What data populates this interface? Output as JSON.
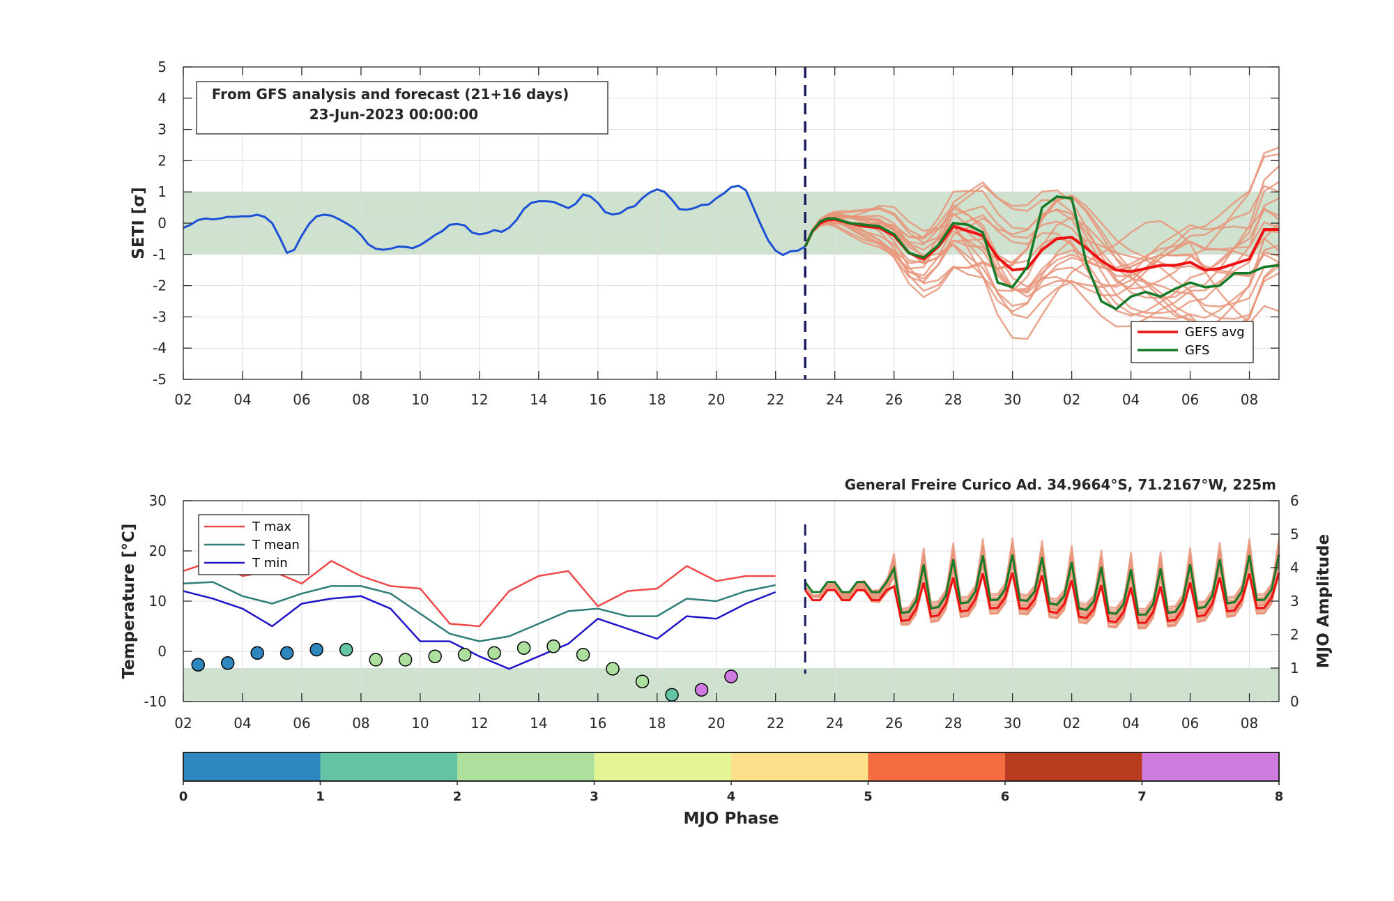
{
  "colors": {
    "analysis": "#1a4fd6",
    "ensemble": "#e8957a",
    "gefs_avg": "#ee1111",
    "gfs": "#157a28",
    "band": "#cfe2cf",
    "divider": "#1a1a5e",
    "tmax": "#ef4848",
    "tmean": "#2e7d78",
    "tmin": "#2014c8"
  },
  "chart_data": [
    {
      "type": "line",
      "id": "seti",
      "ylabel": "SETI [σ]",
      "ylim": [
        -5,
        5
      ],
      "yticks": [
        "5",
        "4",
        "3",
        "2",
        "1",
        "0",
        "-1",
        "-2",
        "-3",
        "-4",
        "-5"
      ],
      "xlim": [
        0,
        37
      ],
      "xtick_labels": [
        "02",
        "04",
        "06",
        "08",
        "10",
        "12",
        "14",
        "16",
        "18",
        "20",
        "22",
        "24",
        "26",
        "28",
        "30",
        "02",
        "04",
        "06",
        "08"
      ],
      "shaded_band": [
        -1,
        1
      ],
      "forecast_start": 21,
      "info_box": {
        "line1": "From GFS analysis and forecast (21+16 days)",
        "line2": "23-Jun-2023 00:00:00"
      },
      "legend": {
        "placement": "bottom-right",
        "entries": [
          "GEFS avg",
          "GFS"
        ]
      },
      "analysis": {
        "x": [
          0,
          0.25,
          0.5,
          0.75,
          1,
          1.25,
          1.5,
          1.75,
          2,
          2.25,
          2.5,
          2.75,
          3,
          3.25,
          3.5,
          3.75,
          4,
          4.25,
          4.5,
          4.75,
          5,
          5.25,
          5.5,
          5.75,
          6,
          6.25,
          6.5,
          6.75,
          7,
          7.25,
          7.5,
          7.75,
          8,
          8.25,
          8.5,
          8.75,
          9,
          9.25,
          9.5,
          9.75,
          10,
          10.25,
          10.5,
          10.75,
          11,
          11.25,
          11.5,
          11.75,
          12,
          12.25,
          12.5,
          12.75,
          13,
          13.25,
          13.5,
          13.75,
          14,
          14.25,
          14.5,
          14.75,
          15,
          15.25,
          15.5,
          15.75,
          16,
          16.25,
          16.5,
          16.75,
          17,
          17.25,
          17.5,
          17.75,
          18,
          18.25,
          18.5,
          18.75,
          19,
          19.25,
          19.5,
          19.75,
          20,
          20.25,
          20.5,
          20.75,
          21
        ],
        "y": [
          -0.15,
          -0.05,
          0.1,
          0.15,
          0.12,
          0.15,
          0.2,
          0.2,
          0.22,
          0.22,
          0.27,
          0.2,
          0,
          -0.45,
          -0.95,
          -0.85,
          -0.4,
          -0.02,
          0.22,
          0.27,
          0.24,
          0.13,
          0,
          -0.15,
          -0.38,
          -0.68,
          -0.82,
          -0.85,
          -0.82,
          -0.75,
          -0.76,
          -0.8,
          -0.7,
          -0.55,
          -0.38,
          -0.25,
          -0.05,
          -0.03,
          -0.07,
          -0.3,
          -0.36,
          -0.32,
          -0.22,
          -0.28,
          -0.15,
          0.1,
          0.45,
          0.65,
          0.7,
          0.7,
          0.68,
          0.58,
          0.48,
          0.62,
          0.92,
          0.85,
          0.65,
          0.35,
          0.28,
          0.32,
          0.48,
          0.55,
          0.8,
          0.98,
          1.08,
          1,
          0.75,
          0.45,
          0.43,
          0.48,
          0.58,
          0.6,
          0.8,
          0.95,
          1.15,
          1.2,
          1.05,
          0.5,
          -0.05,
          -0.55,
          -0.88,
          -1.02,
          -0.9,
          -0.88,
          -0.75
        ]
      },
      "gefs_avg": {
        "x": [
          21,
          21.25,
          21.5,
          21.75,
          22,
          22.5,
          23,
          23.5,
          24,
          24.5,
          25,
          25.5,
          26,
          26.5,
          27,
          27.5,
          28,
          28.5,
          29,
          29.5,
          30,
          30.5,
          31,
          31.5,
          32,
          32.5,
          33,
          33.5,
          34,
          34.5,
          35,
          35.5,
          36,
          36.5,
          37
        ],
        "y": [
          -0.75,
          -0.25,
          0,
          0.1,
          0.12,
          0,
          -0.1,
          -0.15,
          -0.4,
          -0.95,
          -1.15,
          -0.75,
          -0.1,
          -0.25,
          -0.4,
          -1.1,
          -1.5,
          -1.45,
          -0.85,
          -0.5,
          -0.45,
          -0.8,
          -1.2,
          -1.5,
          -1.55,
          -1.45,
          -1.35,
          -1.35,
          -1.25,
          -1.5,
          -1.45,
          -1.3,
          -1.15,
          -0.2,
          -0.2
        ]
      },
      "gfs": {
        "x": [
          21,
          21.25,
          21.5,
          21.75,
          22,
          22.5,
          23,
          23.5,
          24,
          24.5,
          25,
          25.5,
          26,
          26.5,
          27,
          27.5,
          28,
          28.5,
          29,
          29.5,
          30,
          30.5,
          31,
          31.5,
          32,
          32.5,
          33,
          33.5,
          34,
          34.5,
          35,
          35.5,
          36,
          36.5,
          37
        ],
        "y": [
          -0.75,
          -0.25,
          0.05,
          0.15,
          0.15,
          0,
          -0.05,
          -0.1,
          -0.35,
          -0.95,
          -1.1,
          -0.7,
          0,
          -0.05,
          -0.3,
          -1.9,
          -2.05,
          -1.4,
          0.5,
          0.85,
          0.8,
          -1.3,
          -2.5,
          -2.75,
          -2.35,
          -2.2,
          -2.35,
          -2.1,
          -1.9,
          -2.05,
          -2.0,
          -1.6,
          -1.6,
          -1.4,
          -1.35
        ]
      }
    },
    {
      "type": "line",
      "id": "temperature",
      "station": "General Freire Curico Ad. 34.9664°S, 71.2167°W, 225m",
      "ylabel": "Temperature [°C]",
      "ylabel_right": "MJO Amplitude",
      "ylim": [
        -10,
        30
      ],
      "yticks": [
        "30",
        "20",
        "10",
        "0",
        "-10"
      ],
      "ylim_right": [
        0,
        6
      ],
      "yticks_right": [
        "6",
        "5",
        "4",
        "3",
        "2",
        "1",
        "0"
      ],
      "xlim": [
        0,
        37
      ],
      "xtick_labels": [
        "02",
        "04",
        "06",
        "08",
        "10",
        "12",
        "14",
        "16",
        "18",
        "20",
        "22",
        "24",
        "26",
        "28",
        "30",
        "02",
        "04",
        "06",
        "08"
      ],
      "shaded_band_right": [
        0,
        1
      ],
      "forecast_start": 21,
      "legend": {
        "placement": "top-left",
        "entries": [
          "T max",
          "T mean",
          "T min"
        ]
      },
      "tmax": {
        "x": [
          0,
          1,
          2,
          3,
          4,
          5,
          6,
          7,
          8,
          9,
          10,
          11,
          12,
          13,
          14,
          15,
          16,
          17,
          18,
          19,
          20
        ],
        "y": [
          16,
          18,
          15,
          16,
          13.5,
          18,
          15,
          13,
          12.5,
          5.5,
          5,
          12,
          15,
          16,
          9,
          12,
          12.5,
          17,
          14,
          15,
          15
        ]
      },
      "tmean": {
        "x": [
          0,
          1,
          2,
          3,
          4,
          5,
          6,
          7,
          8,
          9,
          10,
          11,
          12,
          13,
          14,
          15,
          16,
          17,
          18,
          19,
          20
        ],
        "y": [
          13.5,
          13.8,
          11,
          9.5,
          11.5,
          13,
          13,
          11.5,
          7.5,
          3.5,
          2,
          3,
          5.5,
          8,
          8.5,
          7,
          7,
          10.5,
          10,
          12,
          13.2
        ]
      },
      "tmin": {
        "x": [
          0,
          1,
          2,
          3,
          4,
          5,
          6,
          7,
          8,
          9,
          10,
          11,
          12,
          13,
          14,
          15,
          16,
          17,
          18,
          19,
          20
        ],
        "y": [
          12,
          10.5,
          8.5,
          5,
          9.5,
          10.5,
          11,
          8.5,
          2,
          2,
          -1,
          -3.5,
          -1,
          1.5,
          6.5,
          4.5,
          2.5,
          7,
          6.5,
          9.5,
          11.8
        ]
      },
      "mjo": {
        "x": [
          0.5,
          1.5,
          2.5,
          3.5,
          4.5,
          5.5,
          6.5,
          7.5,
          8.5,
          9.5,
          10.5,
          11.5,
          12.5,
          13.5,
          14.5,
          15.5,
          16.5,
          17.5,
          18.5
        ],
        "amplitude": [
          1.1,
          1.15,
          1.45,
          1.45,
          1.55,
          1.55,
          1.25,
          1.25,
          1.35,
          1.4,
          1.45,
          1.6,
          1.65,
          1.4,
          0.98,
          0.6,
          0.2,
          0.35,
          0.75
        ],
        "phase": [
          0.5,
          0.5,
          0.5,
          0.5,
          0.5,
          1.5,
          2.5,
          2.5,
          2.5,
          2.5,
          2.5,
          2.5,
          2.5,
          2.5,
          2.5,
          2.5,
          1.5,
          7.5,
          7.5
        ]
      },
      "forecast_ensemble_note": "",
      "gefs_avg_temp": {
        "x_start": 21,
        "x_end": 37,
        "base": 12
      },
      "gfs_temp": {
        "x_start": 21,
        "x_end": 37,
        "base": 12
      }
    }
  ],
  "colorbar": {
    "label": "MJO Phase",
    "ticks": [
      "0",
      "1",
      "2",
      "3",
      "4",
      "5",
      "6",
      "7",
      "8"
    ],
    "colors": [
      "#2e87be",
      "#63c3a5",
      "#addf9f",
      "#e3f595",
      "#fde08a",
      "#f46c3f",
      "#b83c20",
      "#cf7be0"
    ]
  }
}
